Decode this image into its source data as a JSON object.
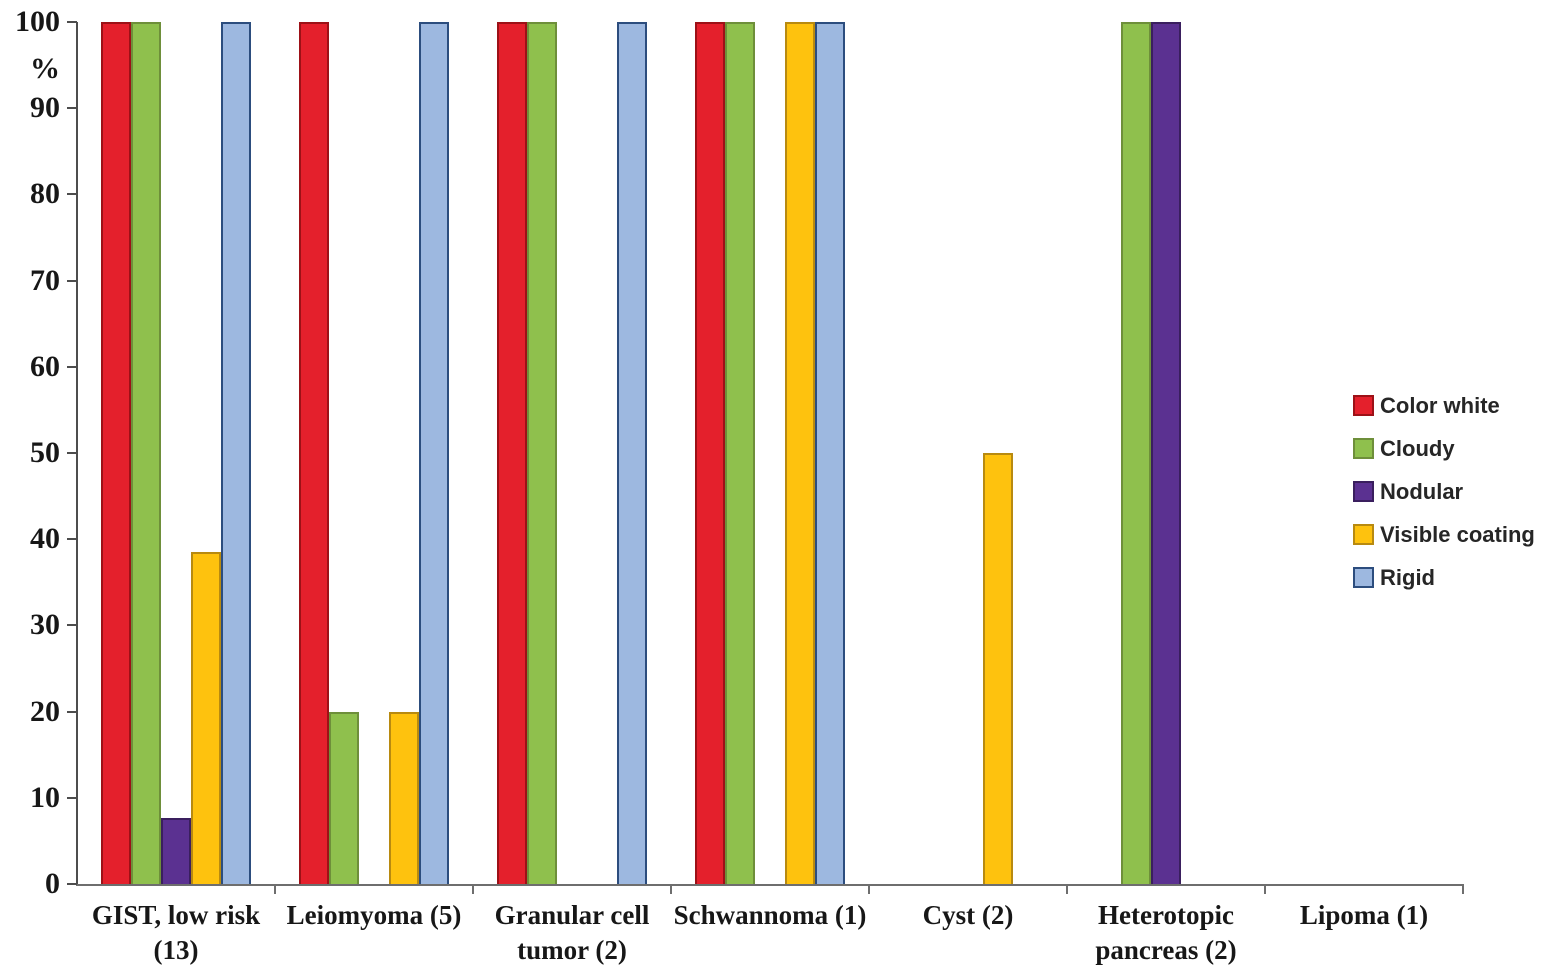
{
  "chart_data": {
    "type": "bar",
    "title": "",
    "ylabel": "%",
    "ylim": [
      0,
      100
    ],
    "yticks": [
      0,
      10,
      20,
      30,
      40,
      50,
      60,
      70,
      80,
      90,
      100
    ],
    "grid": false,
    "legend_position": "right",
    "categories": [
      {
        "lines": [
          "GIST, low risk",
          "(13)"
        ]
      },
      {
        "lines": [
          "Leiomyoma (5)"
        ]
      },
      {
        "lines": [
          "Granular cell",
          "tumor (2)"
        ]
      },
      {
        "lines": [
          "Schwannoma (1)"
        ]
      },
      {
        "lines": [
          "Cyst (2)"
        ]
      },
      {
        "lines": [
          "Heterotopic",
          "pancreas (2)"
        ]
      },
      {
        "lines": [
          "Lipoma (1)"
        ]
      }
    ],
    "series": [
      {
        "name": "Color white",
        "color": "#E4202C",
        "border": "#9D1117",
        "values": [
          100,
          100,
          100,
          100,
          0,
          0,
          0
        ]
      },
      {
        "name": "Cloudy",
        "color": "#8FC04D",
        "border": "#6E8F3A",
        "values": [
          100,
          20,
          100,
          100,
          0,
          100,
          0
        ]
      },
      {
        "name": "Nodular",
        "color": "#5B3191",
        "border": "#3A1F5E",
        "values": [
          7.7,
          0,
          0,
          0,
          0,
          100,
          0
        ]
      },
      {
        "name": "Visible coating",
        "color": "#FEC20E",
        "border": "#B88A10",
        "values": [
          38.5,
          20,
          0,
          100,
          50,
          0,
          0
        ]
      },
      {
        "name": "Rigid",
        "color": "#9DB8E0",
        "border": "#2C4D7E",
        "values": [
          100,
          100,
          100,
          100,
          0,
          0,
          0
        ]
      }
    ]
  }
}
